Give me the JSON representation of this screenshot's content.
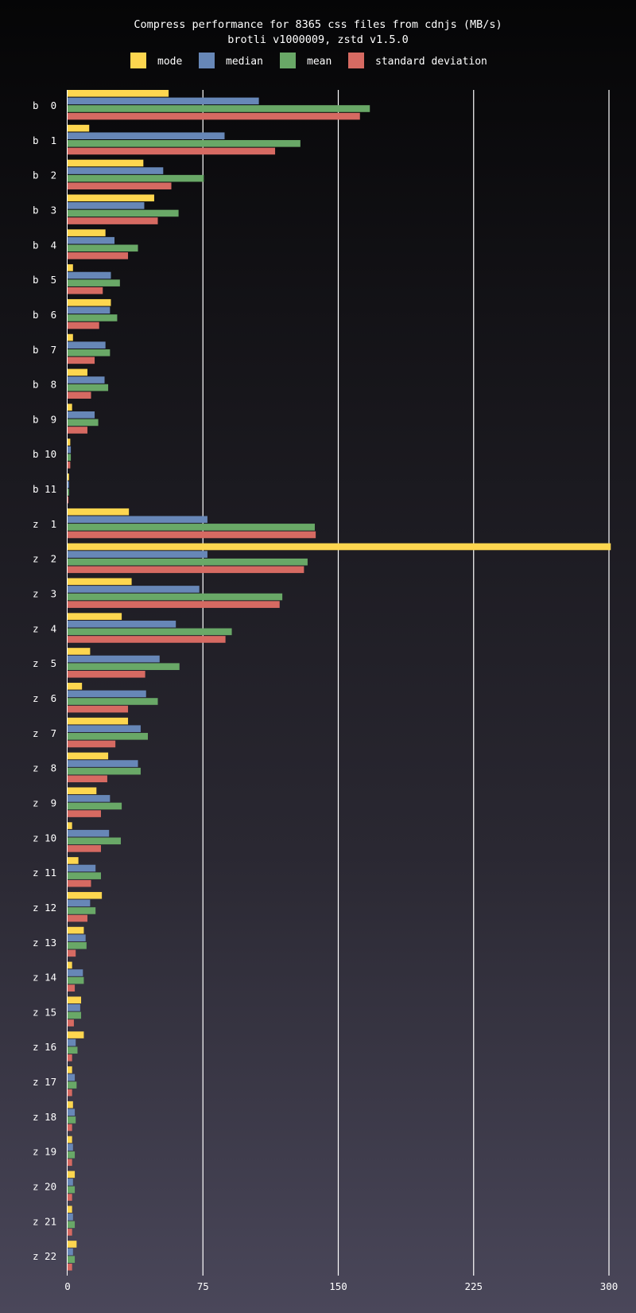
{
  "chart_data": {
    "type": "bar",
    "orientation": "horizontal",
    "title": "Compress performance for 8365 css files from cdnjs (MB/s)",
    "subtitle": "brotli v1000009, zstd v1.5.0",
    "legend_position": "top",
    "grid": true,
    "xlim": [
      0,
      300
    ],
    "xticks": [
      0,
      75,
      150,
      225,
      300
    ],
    "categories": [
      "b  0",
      "b  1",
      "b  2",
      "b  3",
      "b  4",
      "b  5",
      "b  6",
      "b  7",
      "b  8",
      "b  9",
      "b 10",
      "b 11",
      "z  1",
      "z  2",
      "z  3",
      "z  4",
      "z  5",
      "z  6",
      "z  7",
      "z  8",
      "z  9",
      "z 10",
      "z 11",
      "z 12",
      "z 13",
      "z 14",
      "z 15",
      "z 16",
      "z 17",
      "z 18",
      "z 19",
      "z 20",
      "z 21",
      "z 22"
    ],
    "series": [
      {
        "name": "mode",
        "color": "#fdd64f",
        "values": [
          56,
          12,
          42,
          48,
          21,
          3,
          24,
          3,
          11,
          2.5,
          1.5,
          0.8,
          34,
          301,
          35.5,
          30,
          12.5,
          8,
          33.5,
          22.5,
          16,
          2.5,
          6,
          19,
          9,
          2.5,
          7.5,
          9,
          2.5,
          3,
          2.5,
          4,
          2.5,
          5
        ]
      },
      {
        "name": "median",
        "color": "#6787b7",
        "values": [
          106,
          87,
          53,
          42.5,
          26,
          24,
          23.5,
          21,
          20.5,
          15,
          1.8,
          0.8,
          77.5,
          77.5,
          73,
          60,
          51,
          43.5,
          40.5,
          39,
          23.5,
          23,
          15.5,
          12.5,
          10,
          8.5,
          7,
          4.5,
          4,
          4,
          3,
          3,
          3,
          3
        ]
      },
      {
        "name": "mean",
        "color": "#69a867",
        "values": [
          167.5,
          129,
          75.5,
          61.5,
          39,
          29,
          27.5,
          23.5,
          22.5,
          17,
          1.8,
          0.8,
          137,
          133,
          119,
          91,
          62,
          50,
          44.5,
          40.5,
          30,
          29.5,
          18.5,
          15.5,
          10.5,
          9,
          7.5,
          5.5,
          5,
          4.5,
          4,
          4,
          4,
          4
        ]
      },
      {
        "name": "standard deviation",
        "color": "#d66a62",
        "values": [
          162,
          115,
          57.5,
          50,
          33.5,
          19.5,
          17.5,
          15,
          13,
          11,
          1.5,
          0.5,
          137.5,
          131,
          117.5,
          87.5,
          43,
          33.5,
          26.5,
          22,
          18.5,
          18.5,
          13,
          11,
          4.5,
          4,
          3.5,
          2.5,
          2.5,
          2.5,
          2.5,
          2.5,
          2.5,
          2.5
        ]
      }
    ]
  }
}
